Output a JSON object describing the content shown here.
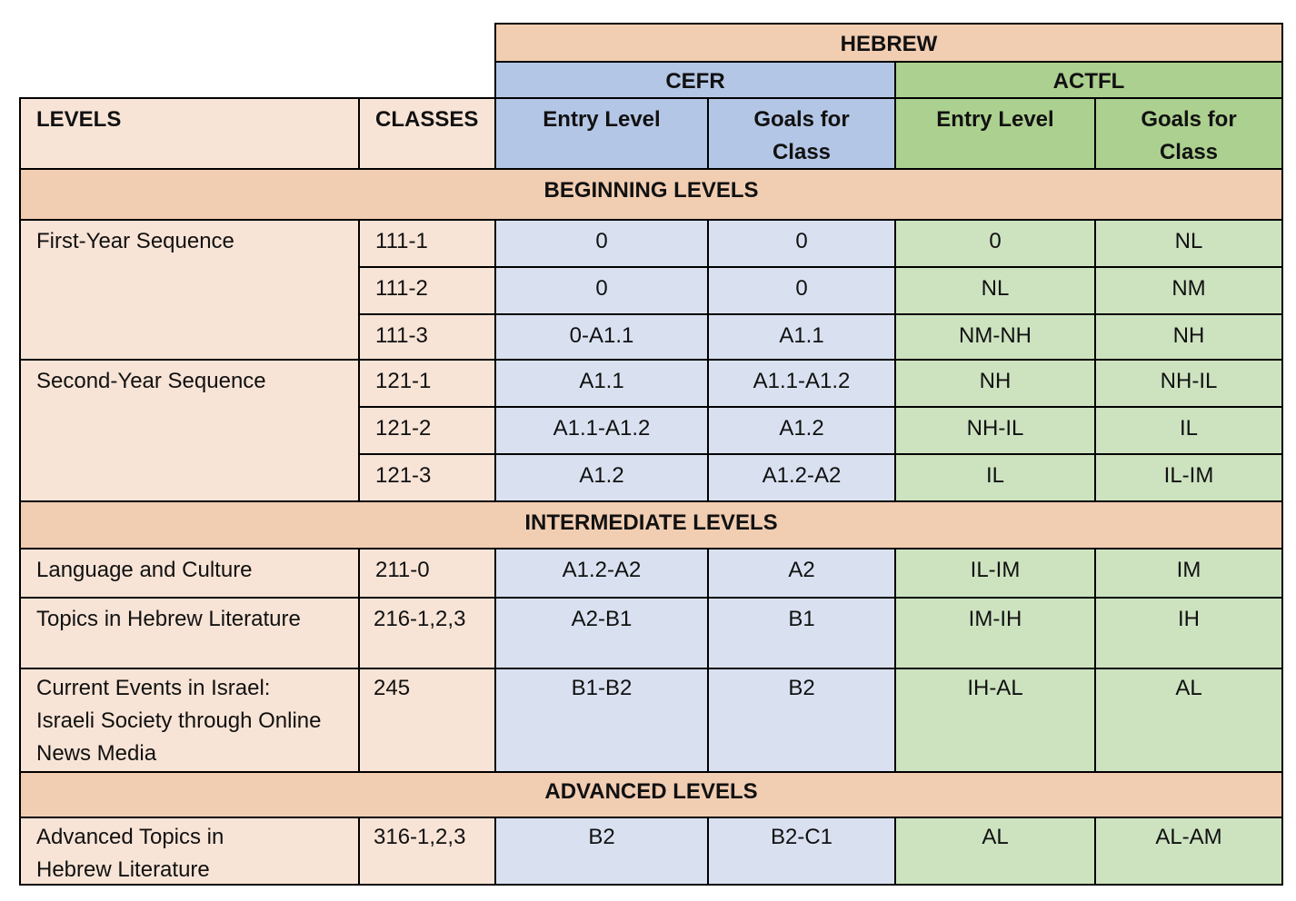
{
  "header": {
    "language": "HEBREW",
    "cefr": "CEFR",
    "actfl": "ACTFL",
    "levels": "LEVELS",
    "classes": "CLASSES",
    "cefr_entry": "Entry Level",
    "cefr_goals": "Goals for Class",
    "actfl_entry": "Entry Level",
    "actfl_goals": "Goals for Class"
  },
  "sections": {
    "beginning": "BEGINNING LEVELS",
    "intermediate": "INTERMEDIATE LEVELS",
    "advanced": "ADVANCED LEVELS"
  },
  "groups": {
    "first_year": "First-Year Sequence",
    "second_year": "Second-Year Sequence"
  },
  "rows": [
    {
      "cls": "111-1",
      "ce": "0",
      "cg": "0",
      "ae": "0",
      "ag": "NL"
    },
    {
      "cls": "111-2",
      "ce": "0",
      "cg": "0",
      "ae": "NL",
      "ag": "NM"
    },
    {
      "cls": "111-3",
      "ce": "0-A1.1",
      "cg": "A1.1",
      "ae": "NM-NH",
      "ag": "NH"
    },
    {
      "cls": "121-1",
      "ce": "A1.1",
      "cg": "A1.1-A1.2",
      "ae": "NH",
      "ag": "NH-IL"
    },
    {
      "cls": "121-2",
      "ce": "A1.1-A1.2",
      "cg": "A1.2",
      "ae": "NH-IL",
      "ag": "IL"
    },
    {
      "cls": "121-3",
      "ce": "A1.2",
      "cg": "A1.2-A2",
      "ae": "IL",
      "ag": "IL-IM"
    },
    {
      "level": "Language and Culture",
      "cls": "211-0",
      "ce": "A1.2-A2",
      "cg": "A2",
      "ae": "IL-IM",
      "ag": "IM"
    },
    {
      "level": "Topics in Hebrew Literature",
      "cls": "216-1,2,3",
      "ce": "A2-B1",
      "cg": "B1",
      "ae": "IM-IH",
      "ag": "IH"
    },
    {
      "level": "Current Events in Israel: Israeli Society through Online News Media",
      "cls": "245",
      "ce": "B1-B2",
      "cg": "B2",
      "ae": "IH-AL",
      "ag": "AL"
    },
    {
      "level": "Advanced Topics in Hebrew Literature",
      "cls": "316-1,2,3",
      "ce": "B2",
      "cg": "B2-C1",
      "ae": "AL",
      "ag": "AL-AM"
    }
  ]
}
